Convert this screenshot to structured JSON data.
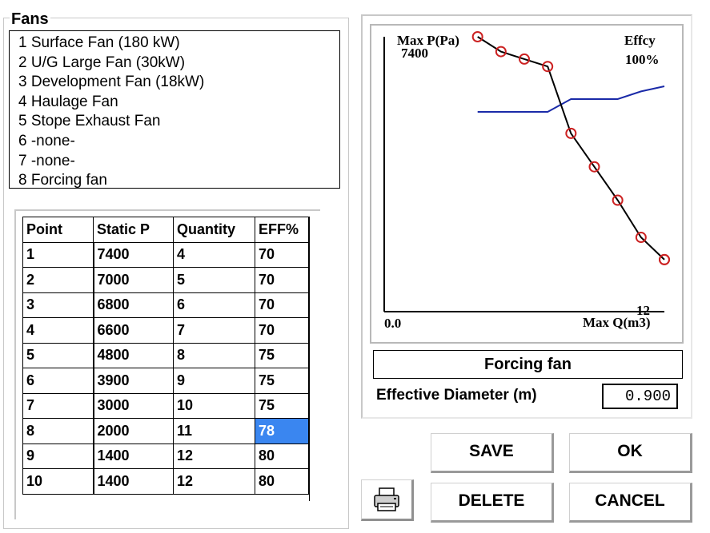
{
  "fans_group": {
    "title": "Fans",
    "items": [
      "1 Surface Fan (180 kW)",
      "2 U/G Large Fan (30kW)",
      "3 Development Fan (18kW)",
      "4 Haulage Fan",
      "5 Stope Exhaust Fan",
      "6 -none-",
      "7 -none-",
      "8 Forcing fan"
    ]
  },
  "table": {
    "headers": [
      "Point",
      "Static P",
      "Quantity",
      "EFF%"
    ],
    "rows": [
      [
        "1",
        "7400",
        "4",
        "70"
      ],
      [
        "2",
        "7000",
        "5",
        "70"
      ],
      [
        "3",
        "6800",
        "6",
        "70"
      ],
      [
        "4",
        "6600",
        "7",
        "70"
      ],
      [
        "5",
        "4800",
        "8",
        "75"
      ],
      [
        "6",
        "3900",
        "9",
        "75"
      ],
      [
        "7",
        "3000",
        "10",
        "75"
      ],
      [
        "8",
        "2000",
        "11",
        "78"
      ],
      [
        "9",
        "1400",
        "12",
        "80"
      ],
      [
        "10",
        "1400",
        "12",
        "80"
      ]
    ],
    "selected_cell": {
      "row": 7,
      "col": 3
    }
  },
  "chart": {
    "max_p_label": "Max P(Pa)",
    "max_p_value": "7400",
    "effcy_label": "Effcy",
    "effcy_value": "100%",
    "x_min_label": "0.0",
    "max_q_value": "12",
    "max_q_label": "Max Q(m3)",
    "pressure_color": "#000000",
    "point_marker_color": "#cc2222",
    "efficiency_color": "#1a2aa8"
  },
  "chart_data": {
    "type": "line",
    "x": [
      4,
      5,
      6,
      7,
      8,
      9,
      10,
      11,
      12,
      12
    ],
    "xlim": [
      0,
      12
    ],
    "series": [
      {
        "values": [
          7400,
          7000,
          6800,
          6600,
          4800,
          3900,
          3000,
          2000,
          1400,
          1400
        ]
      },
      {
        "values": [
          70,
          70,
          70,
          70,
          75,
          75,
          75,
          78,
          80,
          80
        ]
      }
    ],
    "ylim": [
      0,
      7400
    ],
    "y2lim": [
      0,
      100
    ]
  },
  "fan_name": "Forcing fan",
  "diameter": {
    "label": "Effective Diameter (m)",
    "value": "0.900"
  },
  "buttons": {
    "save": "SAVE",
    "ok": "OK",
    "delete": "DELETE",
    "cancel": "CANCEL"
  }
}
